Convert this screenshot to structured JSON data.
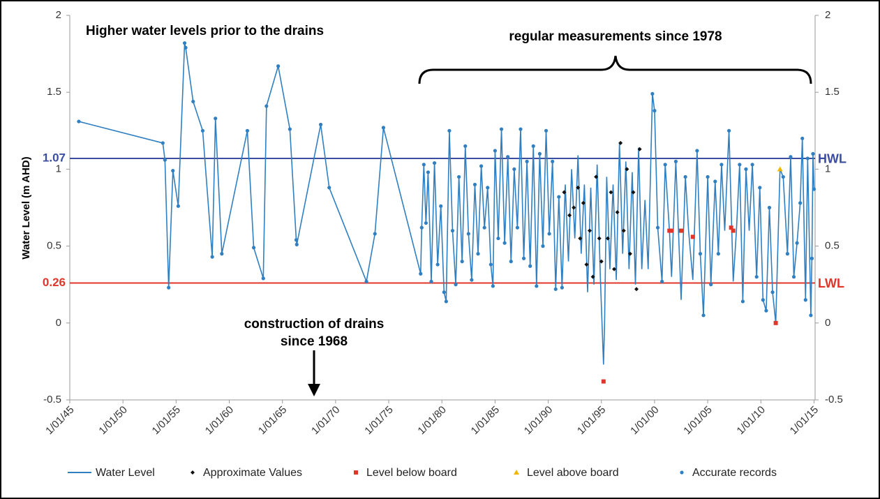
{
  "chart_data": {
    "type": "line",
    "y_label": "Water Level (m AHD)",
    "annotations": [
      "Higher water levels prior to the drains",
      "regular measurements since 1978",
      "construction of drains",
      "since 1968"
    ],
    "xlim": [
      1945,
      2015.1
    ],
    "xticks": [
      {
        "value": 1945,
        "label": "1/01/45"
      },
      {
        "value": 1950,
        "label": "1/01/50"
      },
      {
        "value": 1955,
        "label": "1/01/55"
      },
      {
        "value": 1960,
        "label": "1/01/60"
      },
      {
        "value": 1965,
        "label": "1/01/65"
      },
      {
        "value": 1970,
        "label": "1/01/70"
      },
      {
        "value": 1975,
        "label": "1/01/75"
      },
      {
        "value": 1980,
        "label": "1/01/80"
      },
      {
        "value": 1985,
        "label": "1/01/85"
      },
      {
        "value": 1990,
        "label": "1/01/90"
      },
      {
        "value": 1995,
        "label": "1/01/95"
      },
      {
        "value": 2000,
        "label": "1/01/00"
      },
      {
        "value": 2005,
        "label": "1/01/05"
      },
      {
        "value": 2010,
        "label": "1/01/10"
      },
      {
        "value": 2015,
        "label": "1/01/15"
      }
    ],
    "ylim": [
      -0.5,
      2
    ],
    "yticks": [
      -0.5,
      0,
      0.5,
      1,
      1.5,
      2
    ],
    "y2lim": [
      -0.5,
      2
    ],
    "y2ticks": [
      -0.5,
      0,
      0.5,
      1,
      1.5,
      2
    ],
    "reference_lines": [
      {
        "value": 1.07,
        "label": "HWL",
        "color": "#3b4da0"
      },
      {
        "value": 0.26,
        "label": "LWL",
        "color": "#e0352b"
      }
    ],
    "series": [
      {
        "name": "Water Level",
        "style": "line",
        "color": "#2f7fc1",
        "x": [
          1945.85,
          1953.75,
          1953.95,
          1954.3,
          1954.7,
          1955.2,
          1955.8,
          1955.9,
          1956.6,
          1957.5,
          1958.4,
          1958.7,
          1959.3,
          1961.7,
          1962.3,
          1963.2,
          1963.5,
          1964.6,
          1965.7,
          1966.3,
          1966.35,
          1968.6,
          1969.4,
          1972.9,
          1973.7,
          1974.5,
          1978.0,
          1978.1,
          1978.3,
          1978.5,
          1978.7,
          1979.0,
          1979.3,
          1979.6,
          1979.9,
          1980.2,
          1980.4,
          1980.7,
          1981.0,
          1981.3,
          1981.6,
          1981.9,
          1982.2,
          1982.5,
          1982.8,
          1983.1,
          1983.4,
          1983.7,
          1984.0,
          1984.3,
          1984.6,
          1984.8,
          1985.0,
          1985.3,
          1985.6,
          1985.9,
          1986.2,
          1986.5,
          1986.8,
          1987.1,
          1987.4,
          1987.7,
          1988.0,
          1988.3,
          1988.6,
          1988.9,
          1989.2,
          1989.5,
          1989.8,
          1990.1,
          1990.4,
          1990.7,
          1991.0,
          1991.3,
          1991.6,
          1991.9,
          1992.2,
          1992.5,
          1992.8,
          1993.1,
          1993.4,
          1993.7,
          1994.0,
          1994.3,
          1994.6,
          1994.9,
          1995.2,
          1995.3,
          1995.5,
          1995.8,
          1996.1,
          1996.4,
          1996.7,
          1997.0,
          1997.3,
          1997.6,
          1997.9,
          1998.2,
          1998.5,
          1998.8,
          1999.1,
          1999.4,
          1999.8,
          2000.0,
          2000.3,
          2000.7,
          2001.0,
          2001.4,
          2001.6,
          2002.0,
          2002.5,
          2002.9,
          2003.2,
          2003.6,
          2004.0,
          2004.3,
          2004.6,
          2005.0,
          2005.3,
          2005.7,
          2006.0,
          2006.3,
          2006.6,
          2007.0,
          2007.4,
          2007.7,
          2008.0,
          2008.3,
          2008.6,
          2008.9,
          2009.2,
          2009.6,
          2009.9,
          2010.2,
          2010.5,
          2010.8,
          2011.1,
          2011.4,
          2011.8,
          2012.1,
          2012.5,
          2012.8,
          2013.1,
          2013.4,
          2013.7,
          2013.9,
          2014.2,
          2014.4,
          2014.7,
          2014.8,
          2014.9,
          2015.0
        ],
        "values": [
          1.31,
          1.17,
          1.06,
          0.23,
          0.99,
          0.76,
          1.82,
          1.79,
          1.44,
          1.25,
          0.43,
          1.33,
          0.45,
          1.25,
          0.49,
          0.29,
          1.41,
          1.67,
          1.26,
          0.54,
          0.51,
          1.29,
          0.88,
          0.27,
          0.58,
          1.27,
          0.32,
          0.62,
          1.03,
          0.65,
          0.98,
          0.27,
          1.04,
          0.38,
          0.76,
          0.2,
          0.14,
          1.25,
          0.6,
          0.25,
          0.95,
          0.4,
          1.15,
          0.58,
          0.28,
          0.9,
          0.45,
          1.02,
          0.62,
          0.88,
          0.38,
          0.24,
          1.12,
          0.55,
          1.26,
          0.52,
          1.08,
          0.4,
          1.0,
          0.62,
          1.26,
          0.42,
          1.05,
          0.37,
          1.15,
          0.24,
          1.1,
          0.5,
          1.25,
          0.58,
          1.05,
          0.22,
          0.82,
          0.23,
          0.9,
          0.4,
          1.0,
          0.55,
          1.09,
          0.45,
          0.9,
          0.2,
          0.88,
          0.25,
          1.03,
          0.3,
          -0.27,
          0.0,
          0.95,
          0.35,
          0.9,
          0.28,
          1.17,
          0.45,
          1.05,
          0.35,
          0.98,
          0.25,
          1.14,
          0.35,
          0.8,
          0.35,
          1.49,
          1.38,
          0.62,
          0.27,
          1.03,
          0.6,
          0.3,
          1.05,
          0.15,
          0.95,
          0.6,
          0.28,
          1.12,
          0.45,
          0.05,
          0.95,
          0.25,
          0.92,
          0.45,
          1.03,
          0.6,
          1.25,
          0.27,
          0.6,
          1.03,
          0.14,
          1.0,
          0.6,
          1.03,
          0.3,
          0.88,
          0.15,
          0.08,
          0.75,
          0.2,
          0.0,
          1.0,
          0.95,
          0.45,
          1.08,
          0.3,
          0.52,
          0.78,
          1.2,
          0.15,
          1.07,
          0.05,
          0.42,
          1.1,
          0.87
        ]
      },
      {
        "name": "Approximate Values",
        "style": "diamond",
        "color": "#111111",
        "x": [
          1991.5,
          1992.0,
          1992.4,
          1992.8,
          1993.0,
          1993.3,
          1993.6,
          1993.9,
          1994.2,
          1994.5,
          1994.8,
          1995.0,
          1995.6,
          1995.9,
          1996.2,
          1996.5,
          1996.8,
          1997.1,
          1997.4,
          1997.7,
          1998.0,
          1998.3,
          1998.6
        ],
        "values": [
          0.85,
          0.7,
          0.75,
          0.88,
          0.55,
          0.78,
          0.38,
          0.6,
          0.3,
          0.95,
          0.55,
          0.4,
          0.55,
          0.85,
          0.35,
          0.72,
          1.17,
          0.6,
          1.0,
          0.45,
          0.85,
          0.22,
          1.13
        ]
      },
      {
        "name": "Level below board",
        "style": "square",
        "color": "#e0352b",
        "x": [
          1995.2,
          2001.4,
          2001.6,
          2002.5,
          2003.6,
          2007.2,
          2007.4,
          2011.4
        ],
        "values": [
          -0.38,
          0.6,
          0.6,
          0.6,
          0.56,
          0.62,
          0.6,
          0.0
        ]
      },
      {
        "name": "Level above board",
        "style": "triangle",
        "color": "#f2b600",
        "x": [
          2011.8
        ],
        "values": [
          1.0
        ]
      },
      {
        "name": "Accurate records",
        "style": "circle",
        "color": "#2f7fc1",
        "x": [
          1945.85,
          1953.75,
          1953.95,
          1954.3,
          1954.7,
          1955.2,
          1955.8,
          1955.9,
          1956.6,
          1957.5,
          1958.4,
          1958.7,
          1959.3,
          1961.7,
          1962.3,
          1963.2,
          1963.5,
          1964.6,
          1965.7,
          1966.3,
          1966.35,
          1968.6,
          1969.4,
          1972.9,
          1973.7,
          1974.5,
          1978.0,
          1978.1,
          1978.3,
          1978.5,
          1978.7,
          1979.0,
          1979.3,
          1979.6,
          1979.9,
          1980.2,
          1980.4,
          1980.7,
          1981.0,
          1981.3,
          1981.6,
          1981.9,
          1982.2,
          1982.5,
          1982.8,
          1983.1,
          1983.4,
          1983.7,
          1984.0,
          1984.3,
          1984.6,
          1984.8,
          1985.0,
          1985.3,
          1985.6,
          1985.9,
          1986.2,
          1986.5,
          1986.8,
          1987.1,
          1987.4,
          1987.7,
          1988.0,
          1988.3,
          1988.6,
          1988.9,
          1989.2,
          1989.5,
          1989.8,
          1990.1,
          1990.4,
          1990.7,
          1991.0,
          1991.3,
          1999.8,
          2000.0,
          2000.3,
          2000.7,
          2001.0,
          2002.0,
          2002.9,
          2004.0,
          2004.3,
          2004.6,
          2005.0,
          2005.3,
          2005.7,
          2006.0,
          2006.3,
          2007.0,
          2008.0,
          2008.3,
          2008.6,
          2009.2,
          2009.6,
          2009.9,
          2010.2,
          2010.5,
          2010.8,
          2011.1,
          2012.1,
          2012.5,
          2012.8,
          2013.1,
          2013.4,
          2013.7,
          2013.9,
          2014.2,
          2014.4,
          2014.7,
          2014.8,
          2014.9,
          2015.0
        ],
        "values": [
          1.31,
          1.17,
          1.06,
          0.23,
          0.99,
          0.76,
          1.82,
          1.79,
          1.44,
          1.25,
          0.43,
          1.33,
          0.45,
          1.25,
          0.49,
          0.29,
          1.41,
          1.67,
          1.26,
          0.54,
          0.51,
          1.29,
          0.88,
          0.27,
          0.58,
          1.27,
          0.32,
          0.62,
          1.03,
          0.65,
          0.98,
          0.27,
          1.04,
          0.38,
          0.76,
          0.2,
          0.14,
          1.25,
          0.6,
          0.25,
          0.95,
          0.4,
          1.15,
          0.58,
          0.28,
          0.9,
          0.45,
          1.02,
          0.62,
          0.88,
          0.38,
          0.24,
          1.12,
          0.55,
          1.26,
          0.52,
          1.08,
          0.4,
          1.0,
          0.62,
          1.26,
          0.42,
          1.05,
          0.37,
          1.15,
          0.24,
          1.1,
          0.5,
          1.25,
          0.58,
          1.05,
          0.22,
          0.82,
          0.23,
          1.49,
          1.38,
          0.62,
          0.27,
          1.03,
          1.05,
          0.95,
          1.12,
          0.45,
          0.05,
          0.95,
          0.25,
          0.92,
          0.45,
          1.03,
          1.25,
          1.03,
          0.14,
          1.0,
          1.03,
          0.3,
          0.88,
          0.15,
          0.08,
          0.75,
          0.2,
          0.95,
          0.45,
          1.08,
          0.3,
          0.52,
          0.78,
          1.2,
          0.15,
          1.07,
          0.05,
          0.42,
          1.1,
          0.87
        ]
      }
    ]
  }
}
